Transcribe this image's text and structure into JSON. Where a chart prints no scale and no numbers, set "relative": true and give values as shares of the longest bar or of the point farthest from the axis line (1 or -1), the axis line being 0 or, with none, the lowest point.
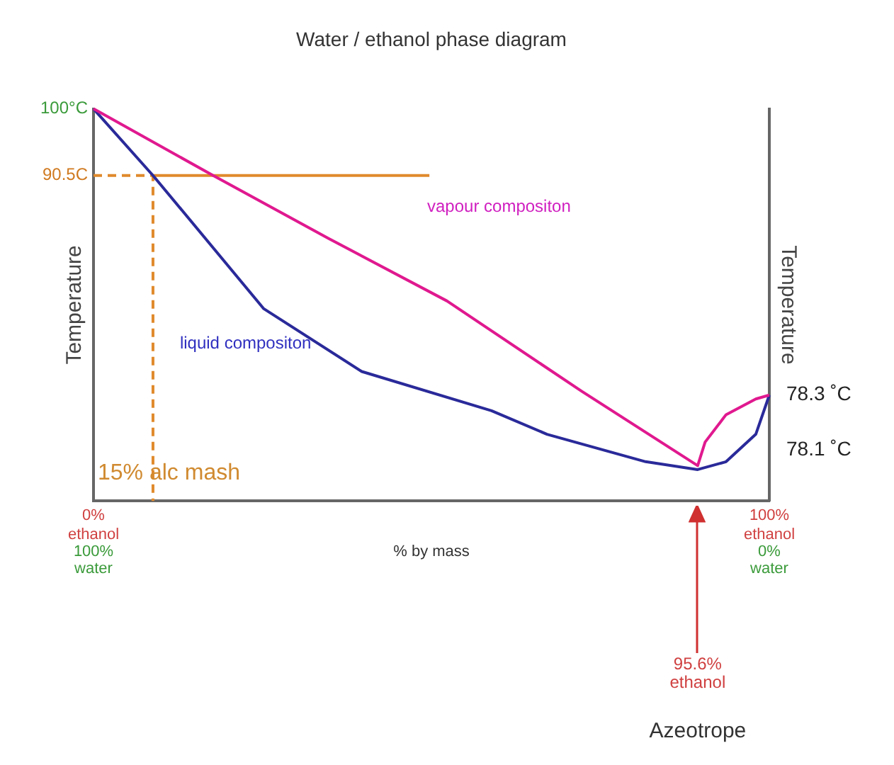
{
  "chart_data": {
    "type": "line",
    "title": "Water / ethanol phase diagram",
    "xlabel": "% by mass",
    "ylabel": "Temperature",
    "y2label": "Temperature",
    "relative": true,
    "xlim": [
      0,
      100
    ],
    "xticks": [
      {
        "value": 0,
        "label": "0%"
      },
      {
        "value": 100,
        "label": "100%"
      }
    ],
    "legend": false,
    "marker": "none",
    "series": [
      {
        "color": "#e0198f",
        "x": [
          0,
          17.7,
          34.7,
          52.3,
          72.2,
          89.4,
          90.5,
          93.6,
          98,
          100
        ],
        "values": [
          1,
          0.83,
          0.67,
          0.51,
          0.28,
          0.09,
          0.15,
          0.22,
          0.26,
          0.27
        ]
      },
      {
        "color": "#2a2a9a",
        "x": [
          0,
          8.8,
          25.2,
          39.7,
          58.9,
          67.1,
          81.7,
          89.4,
          93.6,
          98,
          100
        ],
        "values": [
          1,
          0.83,
          0.49,
          0.33,
          0.23,
          0.17,
          0.1,
          0.08,
          0.1,
          0.17,
          0.27
        ]
      },
      {
        "color": "#e08a2c",
        "line_style": "dashed",
        "x": [
          0,
          8.8,
          8.8
        ],
        "values": [
          0.83,
          0.83,
          0
        ]
      },
      {
        "color": "#e08a2c",
        "line_style": "solid",
        "x": [
          8.8,
          49.7
        ],
        "values": [
          0.83,
          0.83
        ]
      }
    ],
    "annotations": [
      "100°C",
      "90.5C",
      "vapour compositon",
      "liquid compositon",
      "15% alc mash",
      "78.3 ˚C",
      "78.1 ˚C",
      "ethanol\n100%\nwater",
      "ethanol\n0%\nwater",
      "95.6%\nethanol",
      "Azeotrope"
    ]
  }
}
